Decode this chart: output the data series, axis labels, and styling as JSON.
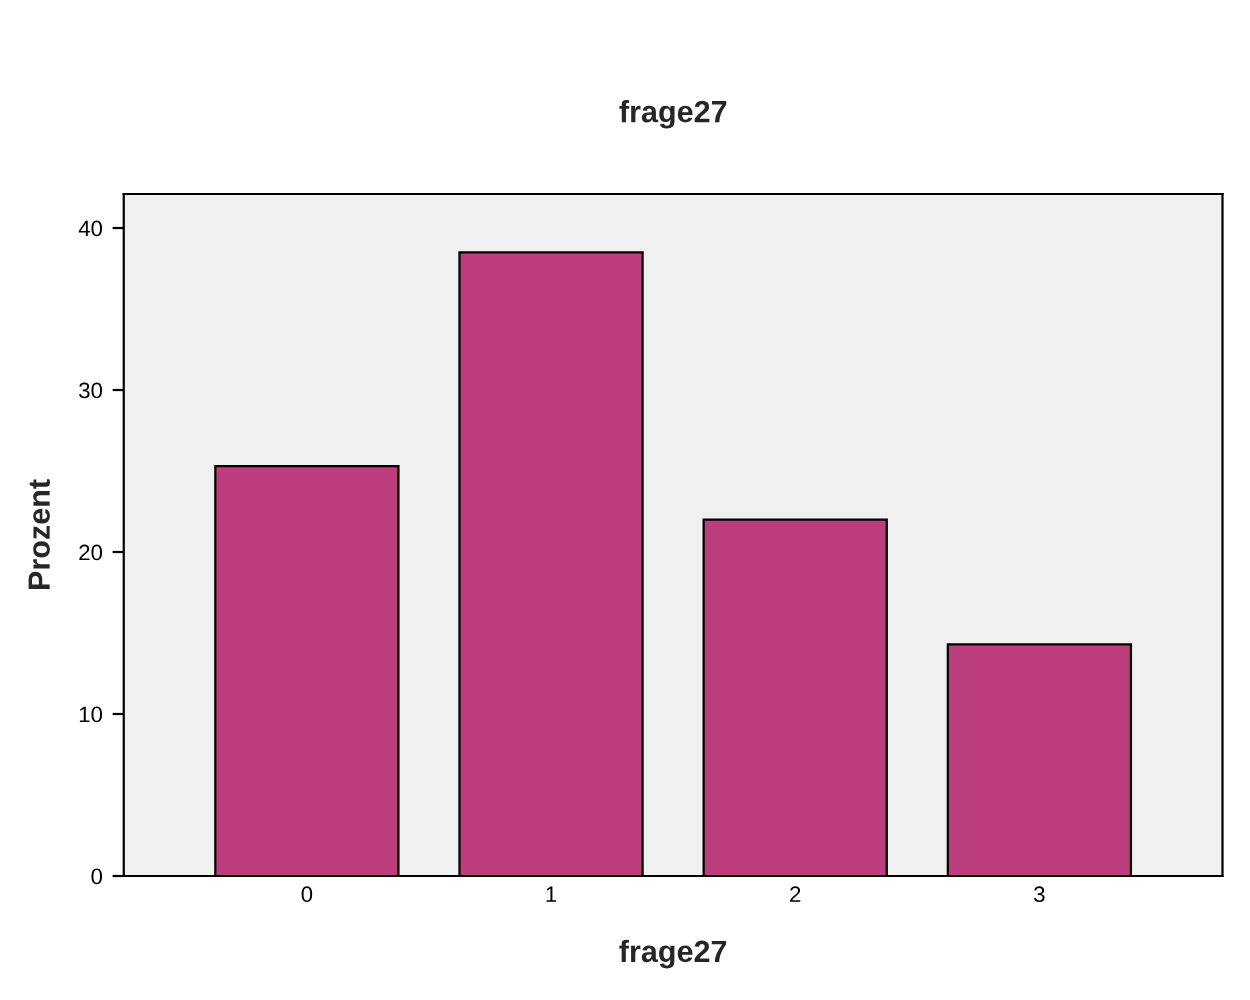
{
  "chart_data": {
    "type": "bar",
    "title": "frage27",
    "xlabel": "frage27",
    "ylabel": "Prozent",
    "categories": [
      "0",
      "1",
      "2",
      "3"
    ],
    "values": [
      25.3,
      38.5,
      22.0,
      14.3
    ],
    "color": "#bc3e7c",
    "ylim": [
      0,
      42.1
    ],
    "yticks": [
      0,
      10,
      20,
      30,
      40
    ],
    "grid": false,
    "legend": false
  }
}
